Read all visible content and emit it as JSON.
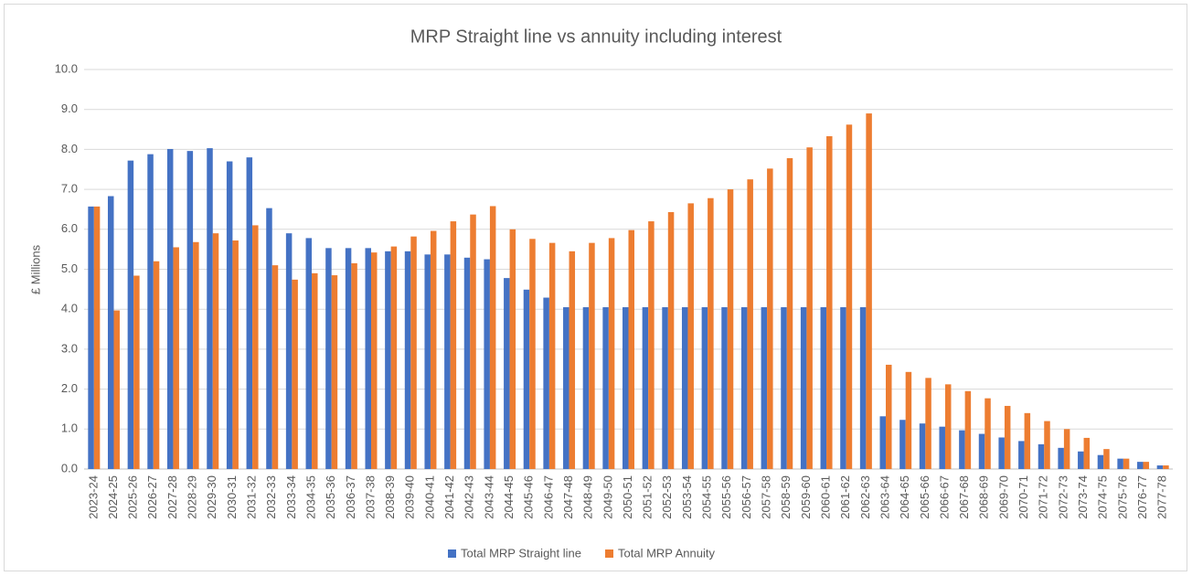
{
  "chart_data": {
    "type": "bar",
    "title": "MRP Straight line vs annuity including interest",
    "y_label": "£ Millions",
    "categories": [
      "2023-24",
      "2024-25",
      "2025-26",
      "2026-27",
      "2027-28",
      "2028-29",
      "2029-30",
      "2030-31",
      "2031-32",
      "2032-33",
      "2033-34",
      "2034-35",
      "2035-36",
      "2036-37",
      "2037-38",
      "2038-39",
      "2039-40",
      "2040-41",
      "2041-42",
      "2042-43",
      "2043-44",
      "2044-45",
      "2045-46",
      "2046-47",
      "2047-48",
      "2048-49",
      "2049-50",
      "2050-51",
      "2051-52",
      "2052-53",
      "2053-54",
      "2054-55",
      "2055-56",
      "2056-57",
      "2057-58",
      "2058-59",
      "2059-60",
      "2060-61",
      "2061-62",
      "2062-63",
      "2063-64",
      "2064-65",
      "2065-66",
      "2066-67",
      "2067-68",
      "2068-69",
      "2069-70",
      "2070-71",
      "2071-72",
      "2072-73",
      "2073-74",
      "2074-75",
      "2075-76",
      "2076-77",
      "2077-78"
    ],
    "series": [
      {
        "name": "Total MRP Straight line",
        "color": "#4472c4",
        "values": [
          6.57,
          6.83,
          7.72,
          7.88,
          8.01,
          7.96,
          8.03,
          7.7,
          7.8,
          6.53,
          5.9,
          5.78,
          5.53,
          5.53,
          5.53,
          5.45,
          5.45,
          5.37,
          5.37,
          5.29,
          5.25,
          4.78,
          4.49,
          4.29,
          4.05,
          4.05,
          4.05,
          4.05,
          4.05,
          4.05,
          4.05,
          4.05,
          4.05,
          4.05,
          4.05,
          4.05,
          4.05,
          4.05,
          4.05,
          4.05,
          1.32,
          1.23,
          1.14,
          1.06,
          0.97,
          0.88,
          0.79,
          0.7,
          0.62,
          0.53,
          0.44,
          0.35,
          0.26,
          0.18,
          0.09
        ]
      },
      {
        "name": "Total MRP Annuity",
        "color": "#ed7d31",
        "values": [
          6.57,
          3.97,
          4.84,
          5.2,
          5.55,
          5.68,
          5.9,
          5.72,
          6.1,
          5.1,
          4.74,
          4.9,
          4.85,
          5.15,
          5.42,
          5.57,
          5.82,
          5.96,
          6.2,
          6.37,
          6.58,
          6.0,
          5.76,
          5.66,
          5.45,
          5.66,
          5.78,
          5.98,
          6.2,
          6.43,
          6.65,
          6.78,
          7.0,
          7.25,
          7.52,
          7.78,
          8.05,
          8.33,
          8.62,
          8.9,
          2.61,
          2.43,
          2.28,
          2.12,
          1.95,
          1.77,
          1.58,
          1.4,
          1.2,
          1.0,
          0.78,
          0.5,
          0.26,
          0.18,
          0.09
        ]
      }
    ],
    "ylim": [
      0,
      10
    ],
    "yticks": [
      {
        "value": 0,
        "label": "0.0"
      },
      {
        "value": 1,
        "label": "1.0"
      },
      {
        "value": 2,
        "label": "2.0"
      },
      {
        "value": 3,
        "label": "3.0"
      },
      {
        "value": 4,
        "label": "4.0"
      },
      {
        "value": 5,
        "label": "5.0"
      },
      {
        "value": 6,
        "label": "6.0"
      },
      {
        "value": 7,
        "label": "7.0"
      },
      {
        "value": 8,
        "label": "8.0"
      },
      {
        "value": 9,
        "label": "9.0"
      },
      {
        "value": 10,
        "label": "10.0"
      }
    ],
    "grid": true,
    "legend": "bottom"
  }
}
